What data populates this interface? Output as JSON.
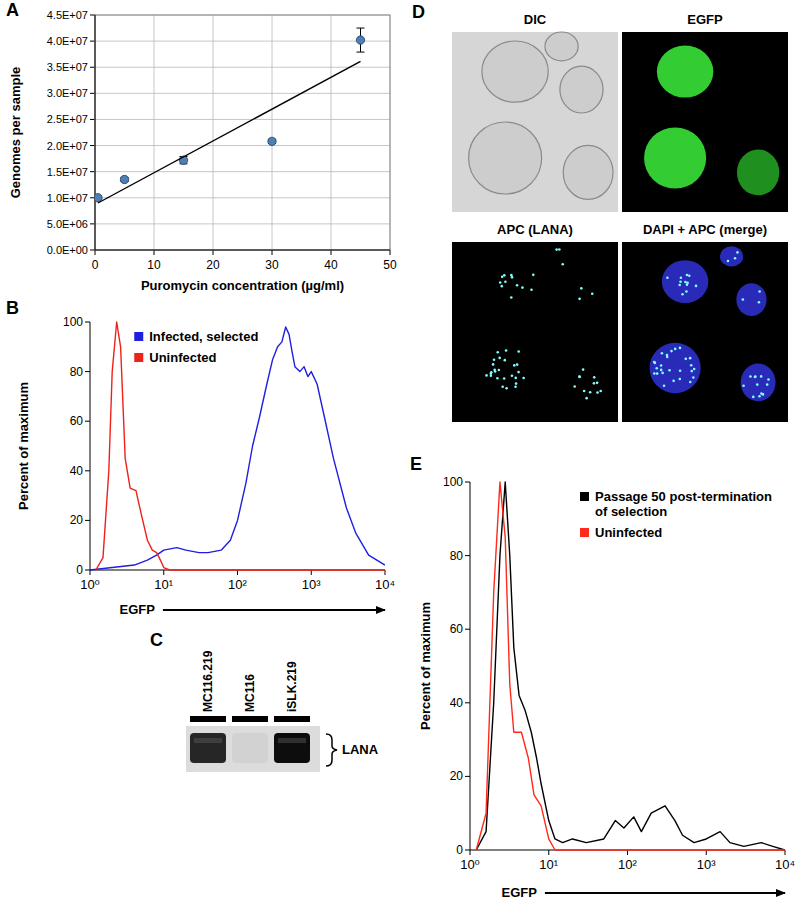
{
  "chart_data": [
    {
      "label": "A",
      "type": "scatter",
      "xlabel": "Puromycin concentration (µg/ml)",
      "ylabel": "Genomes per sample",
      "grid": true,
      "series": [
        {
          "type": "scatter",
          "marker": "circle",
          "color": "#4f7fb3",
          "x": [
            0.5,
            5,
            15,
            30,
            45
          ],
          "values": [
            10000000,
            13500000,
            17200000,
            20800000,
            40200000
          ],
          "errors": [
            300000,
            400000,
            700000,
            400000,
            2300000
          ]
        },
        {
          "type": "line",
          "line_style": "solid",
          "color": "#000000",
          "x": [
            0.5,
            45
          ],
          "values": [
            9000000,
            36100000
          ]
        }
      ],
      "xlim": [
        0,
        50
      ],
      "xticks": [
        0,
        10,
        20,
        30,
        40,
        50
      ],
      "ylim": [
        0,
        45000000
      ],
      "yticks": [
        {
          "value": 0,
          "label": "0.0E+00"
        },
        {
          "value": 5000000,
          "label": "5.0E+06"
        },
        {
          "value": 10000000,
          "label": "1.0E+07"
        },
        {
          "value": 15000000,
          "label": "1.5E+07"
        },
        {
          "value": 20000000,
          "label": "2.0E+07"
        },
        {
          "value": 25000000,
          "label": "2.5E+07"
        },
        {
          "value": 30000000,
          "label": "3.0E+07"
        },
        {
          "value": 35000000,
          "label": "3.5E+07"
        },
        {
          "value": 40000000,
          "label": "4.0E+07"
        },
        {
          "value": 45000000,
          "label": "4.5E+07"
        }
      ]
    },
    {
      "label": "B",
      "type": "line",
      "xlabel": "EGFP",
      "ylabel": "Percent of maximum",
      "log": "x",
      "legend": "upper left",
      "series": [
        {
          "name": "Infected, selected",
          "color": "#1f1fe0",
          "x": [
            1,
            2,
            4,
            6,
            8,
            10,
            15,
            20,
            30,
            40,
            60,
            80,
            100,
            130,
            160,
            200,
            250,
            300,
            350,
            400,
            450,
            500,
            550,
            600,
            700,
            800,
            900,
            1000,
            1200,
            1500,
            2000,
            3000,
            4000,
            6000,
            10000
          ],
          "values": [
            0,
            1,
            2,
            4,
            6,
            8,
            9,
            8,
            7,
            7,
            8,
            12,
            20,
            35,
            50,
            62,
            75,
            85,
            90,
            92,
            98,
            95,
            88,
            82,
            80,
            82,
            78,
            80,
            75,
            62,
            45,
            25,
            15,
            6,
            2
          ]
        },
        {
          "name": "Uninfected",
          "color": "#f0201a",
          "x": [
            1.2,
            1.5,
            1.8,
            2,
            2.3,
            2.6,
            3,
            3.5,
            4.2,
            5,
            6,
            7,
            8,
            9,
            10,
            12,
            20,
            10000
          ],
          "values": [
            0,
            5,
            40,
            80,
            100,
            90,
            45,
            33,
            32,
            22,
            12,
            8,
            7,
            4,
            1,
            0,
            0,
            0
          ]
        }
      ],
      "xlim": [
        1,
        10000
      ],
      "xticks": [
        {
          "value": 1,
          "label": "10⁰"
        },
        {
          "value": 10,
          "label": "10¹"
        },
        {
          "value": 100,
          "label": "10²"
        },
        {
          "value": 1000,
          "label": "10³"
        },
        {
          "value": 10000,
          "label": "10⁴"
        }
      ],
      "ylim": [
        0,
        100
      ],
      "yticks": [
        0,
        20,
        40,
        60,
        80,
        100
      ]
    },
    {
      "label": "E",
      "type": "line",
      "xlabel": "EGFP",
      "ylabel": "Percent of maximum",
      "log": "x",
      "legend": "upper right",
      "series": [
        {
          "name": "Passage 50 post-termination of selection",
          "color": "#000000",
          "x": [
            1.2,
            1.6,
            2,
            2.4,
            2.8,
            3.2,
            3.6,
            4.2,
            5,
            6,
            7,
            8,
            10,
            12,
            15,
            20,
            30,
            50,
            70,
            90,
            120,
            150,
            200,
            300,
            400,
            500,
            700,
            1000,
            1500,
            2000,
            3000,
            5000,
            7000,
            10000
          ],
          "values": [
            0,
            5,
            40,
            80,
            100,
            80,
            55,
            42,
            38,
            32,
            25,
            18,
            8,
            3,
            2,
            3,
            2,
            3,
            8,
            6,
            9,
            5,
            10,
            12,
            8,
            4,
            2,
            3,
            5,
            2,
            1,
            2,
            1,
            0
          ]
        },
        {
          "name": "Uninfected",
          "color": "#ff2a1a",
          "x": [
            1.2,
            1.6,
            2,
            2.4,
            2.8,
            3.2,
            3.6,
            4.5,
            5.5,
            6.5,
            8,
            10,
            12,
            10000
          ],
          "values": [
            0,
            10,
            70,
            100,
            85,
            45,
            32,
            32,
            25,
            15,
            12,
            3,
            0,
            0
          ]
        }
      ],
      "xlim": [
        1,
        10000
      ],
      "xticks": [
        {
          "value": 1,
          "label": "10⁰"
        },
        {
          "value": 10,
          "label": "10¹"
        },
        {
          "value": 100,
          "label": "10²"
        },
        {
          "value": 1000,
          "label": "10³"
        },
        {
          "value": 10000,
          "label": "10⁴"
        }
      ],
      "ylim": [
        0,
        100
      ],
      "yticks": [
        0,
        20,
        40,
        60,
        80,
        100
      ]
    }
  ],
  "blot": {
    "label": "C",
    "lanes": [
      "MC116.219",
      "MC116",
      "iSLK.219"
    ],
    "band": "LANA"
  },
  "micrographs": {
    "label": "D",
    "panels": [
      "DIC",
      "EGFP",
      "APC (LANA)",
      "DAPI + APC (merge)"
    ]
  }
}
